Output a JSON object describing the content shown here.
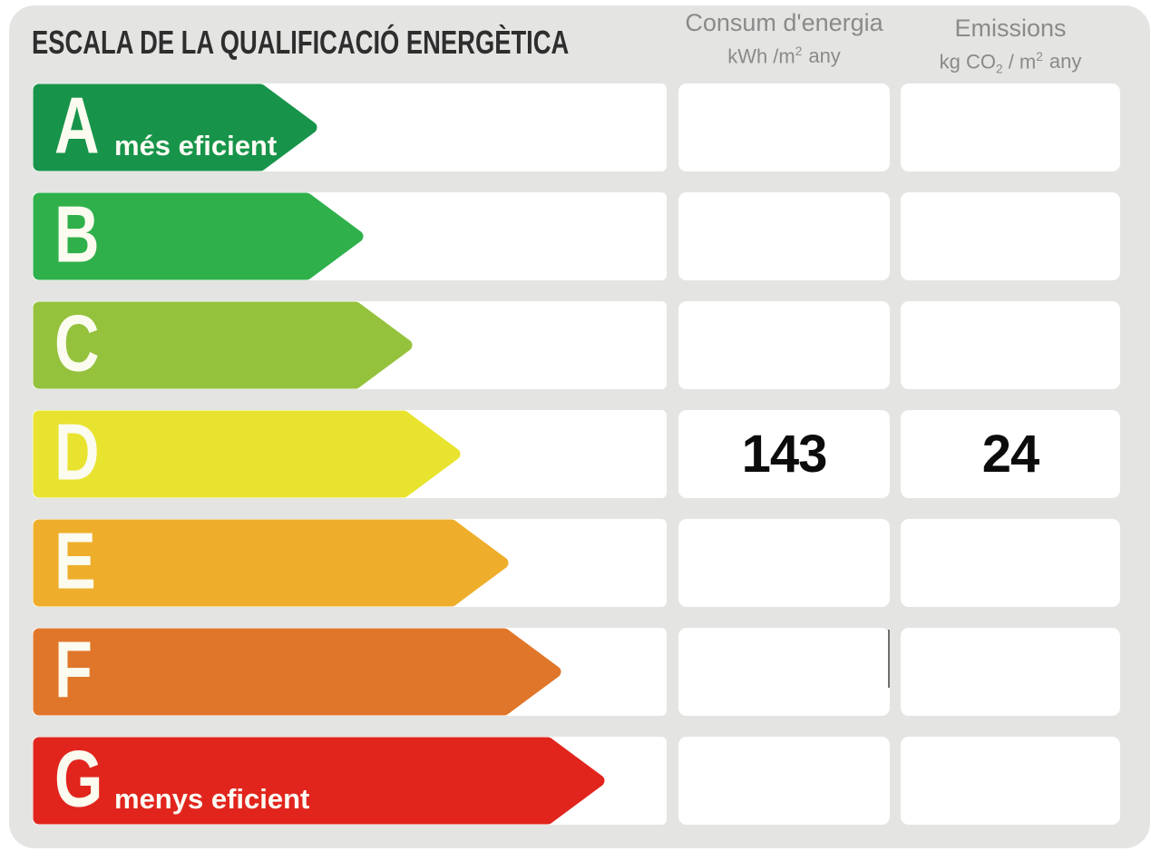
{
  "title": "ESCALA DE LA QUALIFICACIÓ ENERGÈTICA",
  "columns": {
    "consum": {
      "name": "Consum d'energia",
      "unit": {
        "pre": "kWh /m",
        "sup": "2",
        "post": "any"
      }
    },
    "emissions": {
      "name": "Emissions",
      "unit": {
        "pre": "kg CO",
        "sub": "2",
        "mid": " / m",
        "sup": "2",
        "post": "any"
      }
    }
  },
  "scale": {
    "rows": [
      {
        "grade": "A",
        "label": "més eficient",
        "color": "#17944a",
        "arrow_len": 315,
        "consum": "",
        "emissions": ""
      },
      {
        "grade": "B",
        "label": "",
        "color": "#2fb04b",
        "arrow_len": 366,
        "consum": "",
        "emissions": ""
      },
      {
        "grade": "C",
        "label": "",
        "color": "#95c23d",
        "arrow_len": 420,
        "consum": "",
        "emissions": ""
      },
      {
        "grade": "D",
        "label": "",
        "color": "#e8e32f",
        "arrow_len": 473,
        "consum": "143",
        "emissions": "24"
      },
      {
        "grade": "E",
        "label": "",
        "color": "#eeae2b",
        "arrow_len": 526,
        "consum": "",
        "emissions": ""
      },
      {
        "grade": "F",
        "label": "",
        "color": "#e0762a",
        "arrow_len": 584,
        "consum": "",
        "emissions": ""
      },
      {
        "grade": "G",
        "label": "menys eficient",
        "color": "#e1251d",
        "arrow_len": 632,
        "consum": "",
        "emissions": ""
      }
    ]
  },
  "rating": {
    "grade": "D",
    "consum_value": "143",
    "emissions_value": "24"
  },
  "colors": {
    "panel_background": "#e4e5e2",
    "row_background": "#ffffff",
    "title_text": "#2e2e2e",
    "header_text": "#8a8a8a",
    "value_text": "#0c0c0c",
    "arrow_text": "#fcfcf4"
  },
  "chart_data": {
    "type": "bar",
    "title": "ESCALA DE LA QUALIFICACIÓ ENERGÈTICA",
    "categories": [
      "A",
      "B",
      "C",
      "D",
      "E",
      "F",
      "G"
    ],
    "category_colors": [
      "#17944a",
      "#2fb04b",
      "#95c23d",
      "#e8e32f",
      "#eeae2b",
      "#e0762a",
      "#e1251d"
    ],
    "annotations": [
      "A: més eficient",
      "G: menys eficient"
    ],
    "rated_grade": "D",
    "series": [
      {
        "name": "Consum d'energia (kWh /m2 any)",
        "values": [
          null,
          null,
          null,
          143,
          null,
          null,
          null
        ]
      },
      {
        "name": "Emissions (kg CO2 / m2 any)",
        "values": [
          null,
          null,
          null,
          24,
          null,
          null,
          null
        ]
      }
    ],
    "legend_position": "top",
    "grid": false
  }
}
